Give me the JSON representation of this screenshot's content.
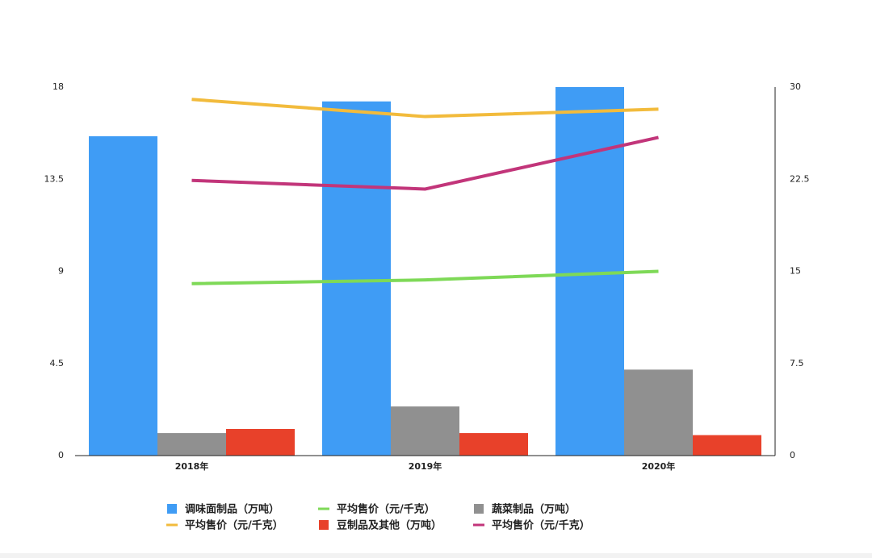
{
  "chart_data": {
    "type": "bar",
    "categories": [
      "2018年",
      "2019年",
      "2020年"
    ],
    "ylim": [
      0,
      18
    ],
    "yticks": [
      0,
      4.5,
      9,
      13.5,
      18
    ],
    "y2lim": [
      0,
      30
    ],
    "y2ticks": [
      0,
      7.5,
      15,
      22.5,
      30
    ],
    "series": [
      {
        "name": "调味面制品（万吨）",
        "type": "bar",
        "color": "#3f9cf5",
        "values": [
          15.6,
          17.3,
          18.0
        ]
      },
      {
        "name": "平均售价（元/千克）",
        "type": "line",
        "axis": "y2",
        "color": "#7ed957",
        "values": [
          14.0,
          14.3,
          15.0
        ]
      },
      {
        "name": "蔬菜制品（万吨）",
        "type": "bar",
        "color": "#909090",
        "values": [
          1.1,
          2.4,
          4.2
        ]
      },
      {
        "name": "平均售价（元/千克）",
        "type": "line",
        "axis": "y2",
        "color": "#f2bb3c",
        "values": [
          29.0,
          27.6,
          28.2
        ]
      },
      {
        "name": "豆制品及其他（万吨）",
        "type": "bar",
        "color": "#e8412a",
        "values": [
          1.3,
          1.1,
          1.0
        ]
      },
      {
        "name": "平均售价（元/千克）",
        "type": "line",
        "axis": "y2",
        "color": "#c2357a",
        "values": [
          22.4,
          21.7,
          25.9
        ]
      }
    ]
  }
}
